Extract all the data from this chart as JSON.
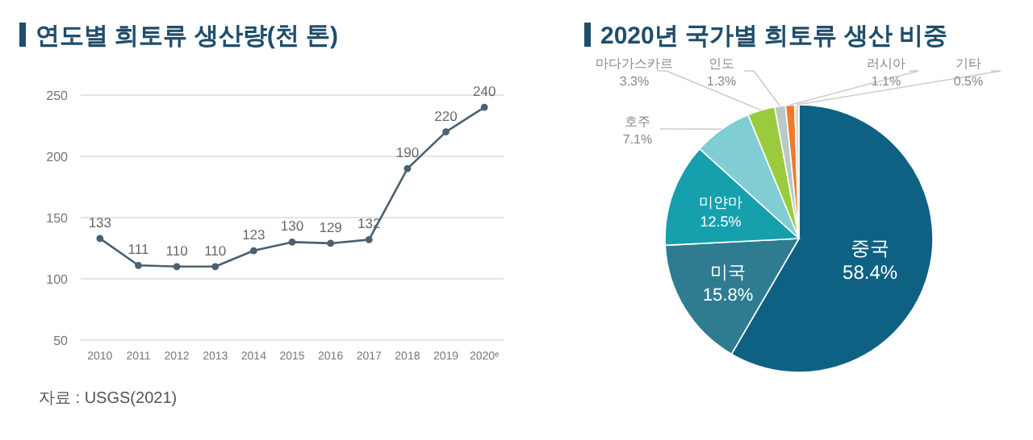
{
  "chart_data": [
    {
      "type": "line",
      "title": "연도별 희토류 생산량(천 톤)",
      "categories": [
        "2010",
        "2011",
        "2012",
        "2013",
        "2014",
        "2015",
        "2016",
        "2017",
        "2018",
        "2019",
        "2020ᵉ"
      ],
      "series": [
        {
          "color": "#4a6172",
          "values": [
            133,
            111,
            110,
            110,
            123,
            130,
            129,
            132,
            190,
            220,
            240
          ]
        }
      ],
      "ylim": [
        50,
        250
      ],
      "yticks": [
        50,
        100,
        150,
        200,
        250
      ],
      "grid": "y",
      "marker": "circle",
      "data_labels": true,
      "annotations": [
        "자료 : USGS(2021)"
      ]
    },
    {
      "type": "pie",
      "title": "2020년 국가별 희토류 생산 비중",
      "categories": [
        "중국",
        "미국",
        "미얀마",
        "호주",
        "마다가스카르",
        "인도",
        "러시아",
        "기타"
      ],
      "values": [
        58.4,
        15.8,
        12.5,
        7.1,
        3.3,
        1.3,
        1.1,
        0.5
      ],
      "colors": [
        "#0f6184",
        "#2f7c91",
        "#16a0ae",
        "#80cdd3",
        "#9acb3e",
        "#b9c9c4",
        "#ef7a2c",
        "#d9d9d9"
      ],
      "value_labels": [
        "58.4%",
        "15.8%",
        "12.5%",
        "7.1%",
        "3.3%",
        "1.3%",
        "1.1%",
        "0.5%"
      ]
    }
  ]
}
